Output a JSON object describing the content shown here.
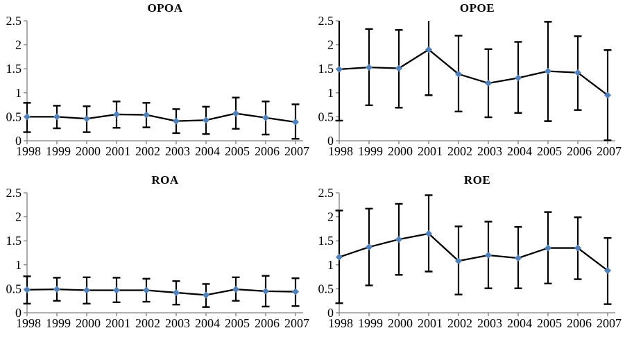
{
  "style": {
    "marker_color": "#4F81BD",
    "series_line_color": "#000000",
    "error_bar_color": "#000000",
    "axis_color": "#808080",
    "text_color": "#000000",
    "background": "#ffffff"
  },
  "chart_data": [
    {
      "id": "opoa",
      "type": "line",
      "title": "OPOA",
      "xlabel": "",
      "ylabel": "",
      "ylim": [
        0,
        2.5
      ],
      "ytick_labels": [
        "0",
        "0.5",
        "1",
        "1.5",
        "2",
        "2.5"
      ],
      "grid": false,
      "legend": "none",
      "categories": [
        "1998",
        "1999",
        "2000",
        "2001",
        "2002",
        "2003",
        "2004",
        "2005",
        "2006",
        "2007"
      ],
      "values": [
        0.5,
        0.5,
        0.46,
        0.55,
        0.54,
        0.41,
        0.43,
        0.57,
        0.48,
        0.39
      ],
      "whisker_low": [
        0.18,
        0.26,
        0.18,
        0.27,
        0.28,
        0.16,
        0.14,
        0.25,
        0.13,
        0.04
      ],
      "whisker_high": [
        0.79,
        0.73,
        0.72,
        0.82,
        0.79,
        0.66,
        0.71,
        0.9,
        0.82,
        0.76
      ]
    },
    {
      "id": "opoe",
      "type": "line",
      "title": "OPOE",
      "xlabel": "",
      "ylabel": "",
      "ylim": [
        0,
        2.5
      ],
      "ytick_labels": [
        "0",
        "0.5",
        "1",
        "1.5",
        "2",
        "2.5"
      ],
      "grid": false,
      "legend": "none",
      "categories": [
        "1998",
        "1999",
        "2000",
        "2001",
        "2002",
        "2003",
        "2004",
        "2005",
        "2006",
        "2007"
      ],
      "values": [
        1.49,
        1.53,
        1.51,
        1.9,
        1.39,
        1.2,
        1.31,
        1.45,
        1.42,
        0.95
      ],
      "whisker_low": [
        0.42,
        0.74,
        0.69,
        0.95,
        0.61,
        0.49,
        0.58,
        0.41,
        0.64,
        0.01
      ],
      "whisker_high": [
        2.5,
        2.33,
        2.31,
        2.5,
        2.19,
        1.91,
        2.06,
        2.48,
        2.18,
        1.89
      ],
      "note": "1998 and 2001 upper whiskers reach the top of the plot (clipped at 2.5, no cap)"
    },
    {
      "id": "roa",
      "type": "line",
      "title": "ROA",
      "xlabel": "",
      "ylabel": "",
      "ylim": [
        0,
        2.5
      ],
      "ytick_labels": [
        "0",
        "0.5",
        "1",
        "1.5",
        "2",
        "2.5"
      ],
      "grid": false,
      "legend": "none",
      "categories": [
        "1998",
        "1999",
        "2000",
        "2001",
        "2002",
        "2003",
        "2004",
        "2005",
        "2006",
        "2007"
      ],
      "values": [
        0.48,
        0.49,
        0.47,
        0.47,
        0.47,
        0.42,
        0.37,
        0.49,
        0.45,
        0.44
      ],
      "whisker_low": [
        0.19,
        0.25,
        0.19,
        0.22,
        0.23,
        0.17,
        0.12,
        0.25,
        0.13,
        0.14
      ],
      "whisker_high": [
        0.76,
        0.73,
        0.74,
        0.73,
        0.71,
        0.66,
        0.6,
        0.74,
        0.77,
        0.72
      ]
    },
    {
      "id": "roe",
      "type": "line",
      "title": "ROE",
      "xlabel": "",
      "ylabel": "",
      "ylim": [
        0,
        2.5
      ],
      "ytick_labels": [
        "0",
        "0.5",
        "1",
        "1.5",
        "2",
        "2.5"
      ],
      "grid": false,
      "legend": "none",
      "categories": [
        "1998",
        "1999",
        "2000",
        "2001",
        "2002",
        "2003",
        "2004",
        "2005",
        "2006",
        "2007"
      ],
      "values": [
        1.16,
        1.37,
        1.53,
        1.65,
        1.08,
        1.2,
        1.14,
        1.35,
        1.35,
        0.88
      ],
      "whisker_low": [
        0.2,
        0.57,
        0.79,
        0.86,
        0.38,
        0.51,
        0.51,
        0.61,
        0.7,
        0.18
      ],
      "whisker_high": [
        2.13,
        2.17,
        2.27,
        2.45,
        1.8,
        1.9,
        1.79,
        2.1,
        1.99,
        1.56
      ]
    }
  ]
}
